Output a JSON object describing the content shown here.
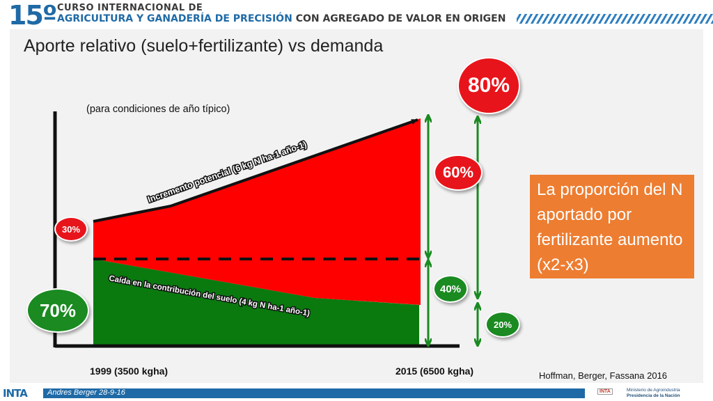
{
  "header": {
    "edition": "15º",
    "line1": "CURSO INTERNACIONAL DE",
    "line2_main": "AGRICULTURA Y GANADERÍA DE PRECISIÓN",
    "line2_rest": "CON AGREGADO DE VALOR EN ORIGEN"
  },
  "title": "Aporte relativo (suelo+fertilizante) vs demanda",
  "subtitle": "(para condiciones de año típico)",
  "labels": {
    "increment": "Incremento potencial (6 kg N ha-1 año-1)",
    "soil_drop": "Caída en la contribución del suelo (4 kg N ha-1 año-1)"
  },
  "badges": {
    "top": "80%",
    "fert_2015": "60%",
    "fert_1999": "30%",
    "soil_1999": "70%",
    "soil_2015": "40%",
    "small_2015": "20%"
  },
  "x_axis": {
    "start": "1999 (3500 kgha)",
    "end": "2015 (6500 kgha)"
  },
  "note": "La proporción del N aportado por fertilizante aumento  (x2-x3)",
  "credit": "Hoffman, Berger, Fassana 2016",
  "footer": {
    "author": "Andres Berger 28-9-16",
    "logo": "INTA",
    "ministry_line1": "Ministerio de Agroindustria",
    "ministry_line2": "Presidencia de la Nación"
  },
  "colors": {
    "red": "#ff0000",
    "green": "#0a7a0f",
    "arrow_green": "#1a8a21",
    "note_orange": "#ed7d31",
    "brand_blue": "#1f6aa6"
  }
}
